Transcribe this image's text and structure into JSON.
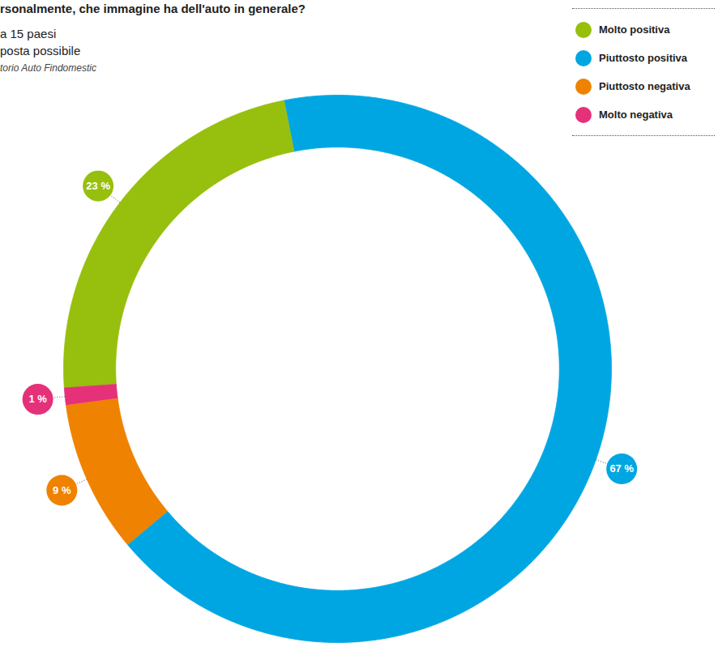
{
  "chart_data": {
    "type": "pie",
    "title": "rsonalmente, che immagine ha dell'auto in generale?",
    "subtitle": [
      "a 15 paesi",
      "posta possibile"
    ],
    "caption": "torio Auto Findomestic",
    "categories": [
      "Molto positiva",
      "Piuttosto positiva",
      "Piuttosto negativa",
      "Molto negativa"
    ],
    "values": [
      23,
      67,
      9,
      1
    ],
    "value_labels": [
      "23 %",
      "67 %",
      "9 %",
      "1 %"
    ],
    "colors": [
      "#97bf0d",
      "#00a6e2",
      "#ef8200",
      "#e5317a"
    ],
    "legend": "top-right",
    "data_labels": true
  }
}
